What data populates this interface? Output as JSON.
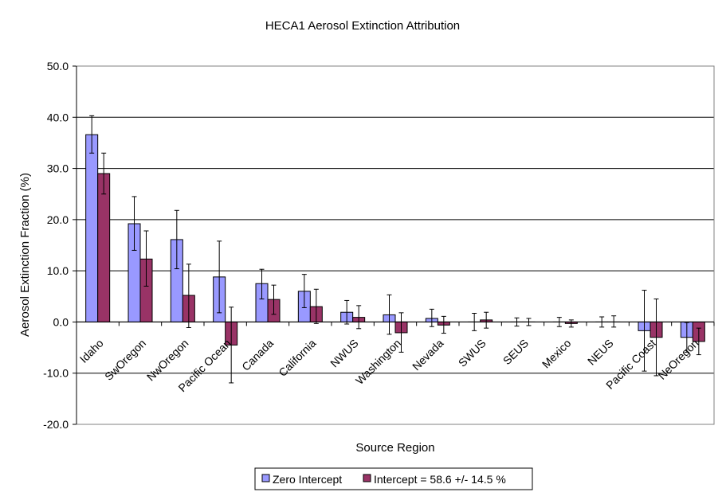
{
  "chart_data": {
    "type": "bar",
    "title": "HECA1 Aerosol Extinction Attribution",
    "xlabel": "Source Region",
    "ylabel": "Aerosol Extinction Fraction (%)",
    "ylim": [
      -20,
      50
    ],
    "yticks": [
      50,
      40,
      30,
      20,
      10,
      0,
      -10,
      -20
    ],
    "ytick_labels": [
      "50.0",
      "40.0",
      "30.0",
      "20.0",
      "10.0",
      "0.0",
      "-10.0",
      "-20.0"
    ],
    "grid": "horizontal major gridlines",
    "legend_position": "bottom",
    "categories": [
      "Idaho",
      "SwOregon",
      "NwOregon",
      "Pacific Ocean",
      "Canada",
      "California",
      "NWUS",
      "Washington",
      "Nevada",
      "SWUS",
      "SEUS",
      "Mexico",
      "NEUS",
      "Pacific Coast",
      "NeOregon"
    ],
    "series": [
      {
        "name": "Zero Intercept",
        "color": "#9999ff",
        "values": [
          36.6,
          19.2,
          16.1,
          8.8,
          7.5,
          6.0,
          1.9,
          1.4,
          0.7,
          0.0,
          0.0,
          0.0,
          0.0,
          -1.7,
          -3.0
        ],
        "error_low": [
          33.0,
          14.0,
          10.4,
          1.8,
          4.5,
          2.8,
          -0.4,
          -2.4,
          -0.9,
          -1.7,
          -0.8,
          -0.9,
          -1.0,
          -9.6,
          -5.9
        ],
        "error_high": [
          40.3,
          24.5,
          21.8,
          15.8,
          10.3,
          9.3,
          4.2,
          5.3,
          2.5,
          1.7,
          0.8,
          0.9,
          1.0,
          6.2,
          -0.1
        ]
      },
      {
        "name": "Intercept = 58.6 +/- 14.5 %",
        "color": "#993366",
        "values": [
          29.0,
          12.3,
          5.2,
          -4.5,
          4.4,
          3.0,
          0.9,
          -2.1,
          -0.6,
          0.4,
          0.0,
          -0.3,
          0.0,
          -3.0,
          -3.8
        ],
        "error_low": [
          25.0,
          7.0,
          -1.1,
          -11.9,
          1.5,
          -0.3,
          -1.3,
          -5.9,
          -2.2,
          -1.2,
          -0.7,
          -1.0,
          -1.0,
          -10.5,
          -6.4
        ],
        "error_high": [
          33.0,
          17.8,
          11.3,
          2.9,
          7.2,
          6.4,
          3.2,
          1.8,
          1.1,
          1.9,
          0.7,
          0.4,
          1.2,
          4.5,
          -1.2
        ]
      }
    ]
  }
}
